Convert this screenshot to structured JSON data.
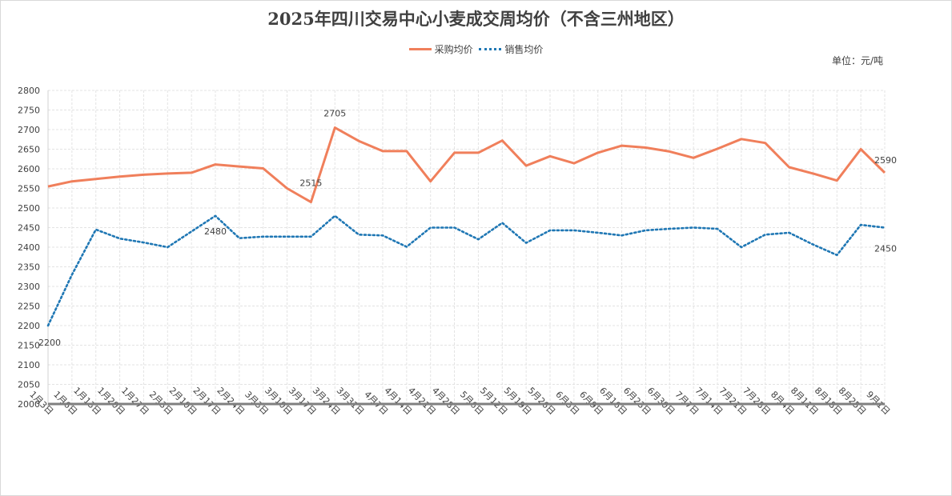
{
  "chart_data": {
    "type": "line",
    "title": "2025年四川交易中心小麦成交周均价（不含三州地区）",
    "unit": "单位：元/吨",
    "legend_position": "top",
    "grid": true,
    "ylim": [
      2000,
      2800
    ],
    "yticks": [
      2000,
      2050,
      2100,
      2150,
      2200,
      2250,
      2300,
      2350,
      2400,
      2450,
      2500,
      2550,
      2600,
      2650,
      2700,
      2750,
      2800
    ],
    "categories": [
      "1月3日",
      "1月6日",
      "1月13日",
      "1月20日",
      "1月27日",
      "2月3日",
      "2月10日",
      "2月17日",
      "2月24日",
      "3月3日",
      "3月10日",
      "3月17日",
      "3月24日",
      "3月31日",
      "4月7日",
      "4月14日",
      "4月21日",
      "4月28日",
      "5月6日",
      "5月12日",
      "5月19日",
      "5月26日",
      "6月3日",
      "6月9日",
      "6月16日",
      "6月23日",
      "6月30日",
      "7月7日",
      "7月14日",
      "7月21日",
      "7月28日",
      "8月4日",
      "8月11日",
      "8月18日",
      "8月25日",
      "9月1日"
    ],
    "series": [
      {
        "name": "采购均价",
        "color": "#f07f5b",
        "style": "solid",
        "values": [
          2555,
          2568,
          2574,
          2580,
          2585,
          2588,
          2590,
          2611,
          2606,
          2601,
          2550,
          2515,
          2705,
          2671,
          2645,
          2645,
          2568,
          2641,
          2641,
          2672,
          2608,
          2632,
          2614,
          2641,
          2659,
          2654,
          2644,
          2628,
          2651,
          2676,
          2666,
          2604,
          2588,
          2570,
          2650,
          2590
        ]
      },
      {
        "name": "销售均价",
        "color": "#1f77b4",
        "style": "dotted",
        "values": [
          2200,
          2330,
          2445,
          2422,
          2412,
          2400,
          2440,
          2480,
          2423,
          2427,
          2427,
          2427,
          2480,
          2432,
          2430,
          2401,
          2450,
          2450,
          2420,
          2462,
          2411,
          2443,
          2443,
          2437,
          2430,
          2443,
          2447,
          2450,
          2447,
          2400,
          2432,
          2437,
          2407,
          2380,
          2457,
          2450
        ]
      }
    ],
    "data_labels": [
      {
        "series": 0,
        "index": 11,
        "text": "2515"
      },
      {
        "series": 0,
        "index": 12,
        "text": "2705"
      },
      {
        "series": 0,
        "index": 35,
        "text": "2590"
      },
      {
        "series": 1,
        "index": 0,
        "text": "2200"
      },
      {
        "series": 1,
        "index": 7,
        "text": "2480"
      },
      {
        "series": 1,
        "index": 35,
        "text": "2450"
      }
    ]
  }
}
